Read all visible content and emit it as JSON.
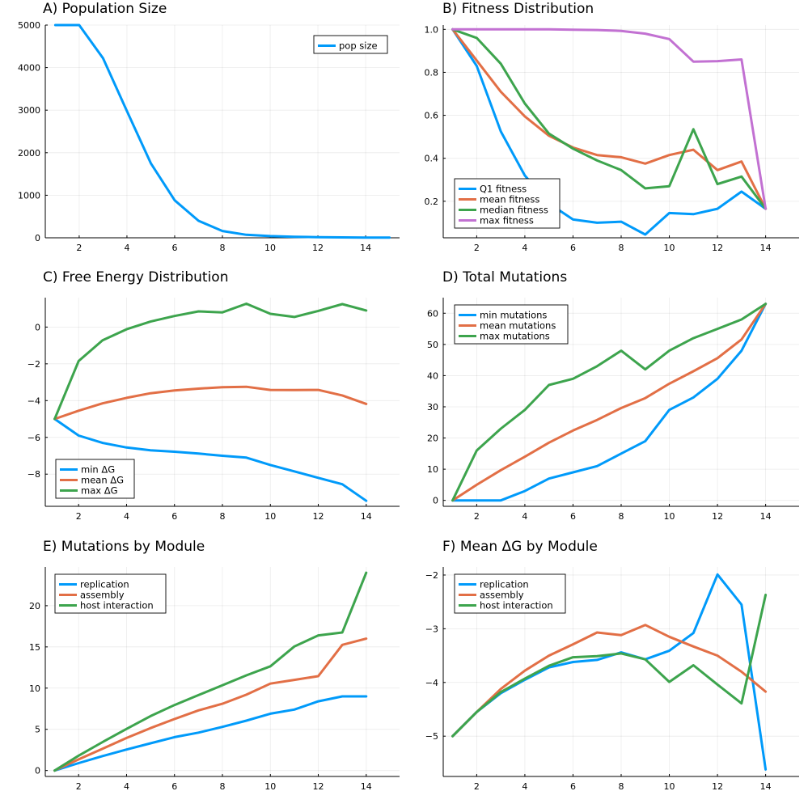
{
  "colors": {
    "blue": "#009AFA",
    "orange": "#E26F46",
    "green": "#3DA44D",
    "purple": "#C271D2"
  },
  "chart_data": [
    {
      "id": "A",
      "type": "line",
      "title": "A) Population Size",
      "xlim": [
        0.58,
        15.42
      ],
      "ylim": [
        0,
        5000
      ],
      "xticks": [
        2,
        4,
        6,
        8,
        10,
        12,
        14
      ],
      "yticks": [
        0,
        1000,
        2000,
        3000,
        4000,
        5000
      ],
      "legend_position": "top-right",
      "grid": true,
      "series": [
        {
          "name": "pop size",
          "color": "#009AFA",
          "x": [
            1,
            2,
            3,
            4,
            5,
            6,
            7,
            8,
            9,
            10,
            11,
            12,
            13,
            14,
            15
          ],
          "y": [
            5000,
            5000,
            4220,
            2980,
            1750,
            880,
            400,
            160,
            70,
            40,
            25,
            15,
            10,
            6,
            3
          ]
        }
      ]
    },
    {
      "id": "B",
      "type": "line",
      "title": "B) Fitness Distribution",
      "xlim": [
        0.61,
        15.39
      ],
      "ylim": [
        0.03,
        1.02
      ],
      "xticks": [
        2,
        4,
        6,
        8,
        10,
        12,
        14
      ],
      "yticks": [
        0.2,
        0.4,
        0.6,
        0.8,
        1.0
      ],
      "ytick_labels": [
        "0.2",
        "0.4",
        "0.6",
        "0.8",
        "1.0"
      ],
      "legend_position": "bottom-left",
      "grid": true,
      "series": [
        {
          "name": "Q1 fitness",
          "color": "#009AFA",
          "x": [
            1,
            2,
            3,
            4,
            5,
            6,
            7,
            8,
            9,
            10,
            11,
            12,
            13,
            14
          ],
          "y": [
            1.0,
            0.83,
            0.525,
            0.32,
            0.19,
            0.115,
            0.1,
            0.105,
            0.045,
            0.145,
            0.14,
            0.165,
            0.245,
            0.165
          ]
        },
        {
          "name": "mean fitness",
          "color": "#E26F46",
          "x": [
            1,
            2,
            3,
            4,
            5,
            6,
            7,
            8,
            9,
            10,
            11,
            12,
            13,
            14
          ],
          "y": [
            1.0,
            0.855,
            0.71,
            0.595,
            0.505,
            0.45,
            0.415,
            0.405,
            0.375,
            0.415,
            0.44,
            0.345,
            0.385,
            0.165
          ]
        },
        {
          "name": "median fitness",
          "color": "#3DA44D",
          "x": [
            1,
            2,
            3,
            4,
            5,
            6,
            7,
            8,
            9,
            10,
            11,
            12,
            13,
            14
          ],
          "y": [
            1.0,
            0.96,
            0.84,
            0.655,
            0.515,
            0.445,
            0.39,
            0.345,
            0.26,
            0.27,
            0.535,
            0.28,
            0.315,
            0.165
          ]
        },
        {
          "name": "max fitness",
          "color": "#C271D2",
          "x": [
            1,
            2,
            3,
            4,
            5,
            6,
            7,
            8,
            9,
            10,
            11,
            12,
            13,
            14
          ],
          "y": [
            1.0,
            1.0,
            1.0,
            1.0,
            1.0,
            0.998,
            0.997,
            0.993,
            0.98,
            0.955,
            0.85,
            0.852,
            0.86,
            0.165
          ]
        }
      ]
    },
    {
      "id": "C",
      "type": "line",
      "title": "C) Free Energy Distribution",
      "xlim": [
        0.61,
        15.39
      ],
      "ylim": [
        -9.75,
        1.6
      ],
      "xticks": [
        2,
        4,
        6,
        8,
        10,
        12,
        14
      ],
      "yticks": [
        -8,
        -6,
        -4,
        -2,
        0
      ],
      "ytick_labels": [
        "−8",
        "−6",
        "−4",
        "−2",
        "0"
      ],
      "legend_position": "bottom-left",
      "grid": true,
      "series": [
        {
          "name": "min ΔG",
          "color": "#009AFA",
          "x": [
            1,
            2,
            3,
            4,
            5,
            6,
            7,
            8,
            9,
            10,
            11,
            12,
            13,
            14
          ],
          "y": [
            -5.0,
            -5.9,
            -6.3,
            -6.55,
            -6.7,
            -6.78,
            -6.88,
            -7.0,
            -7.1,
            -7.5,
            -7.85,
            -8.2,
            -8.55,
            -9.45
          ]
        },
        {
          "name": "mean ΔG",
          "color": "#E26F46",
          "x": [
            1,
            2,
            3,
            4,
            5,
            6,
            7,
            8,
            9,
            10,
            11,
            12,
            13,
            14
          ],
          "y": [
            -5.0,
            -4.55,
            -4.15,
            -3.85,
            -3.6,
            -3.45,
            -3.35,
            -3.27,
            -3.25,
            -3.42,
            -3.43,
            -3.42,
            -3.72,
            -4.18
          ]
        },
        {
          "name": "max ΔG",
          "color": "#3DA44D",
          "x": [
            1,
            2,
            3,
            4,
            5,
            6,
            7,
            8,
            9,
            10,
            11,
            12,
            13,
            14
          ],
          "y": [
            -5.0,
            -1.85,
            -0.72,
            -0.12,
            0.3,
            0.6,
            0.85,
            0.8,
            1.27,
            0.72,
            0.55,
            0.88,
            1.25,
            0.9
          ]
        }
      ]
    },
    {
      "id": "D",
      "type": "line",
      "title": "D) Total Mutations",
      "xlim": [
        0.61,
        15.39
      ],
      "ylim": [
        -1.9,
        65.0
      ],
      "xticks": [
        2,
        4,
        6,
        8,
        10,
        12,
        14
      ],
      "yticks": [
        0,
        10,
        20,
        30,
        40,
        50,
        60
      ],
      "legend_position": "top-left",
      "grid": true,
      "series": [
        {
          "name": "min mutations",
          "color": "#009AFA",
          "x": [
            1,
            2,
            3,
            4,
            5,
            6,
            7,
            8,
            9,
            10,
            11,
            12,
            13,
            14
          ],
          "y": [
            0,
            0,
            0,
            3,
            7,
            9,
            11,
            15,
            19,
            29,
            33,
            39,
            48,
            63
          ]
        },
        {
          "name": "mean mutations",
          "color": "#E26F46",
          "x": [
            1,
            2,
            3,
            4,
            5,
            6,
            7,
            8,
            9,
            10,
            11,
            12,
            13,
            14
          ],
          "y": [
            0,
            5,
            9.7,
            14,
            18.5,
            22.4,
            25.8,
            29.6,
            32.8,
            37.4,
            41.4,
            45.6,
            51.6,
            63
          ]
        },
        {
          "name": "max mutations",
          "color": "#3DA44D",
          "x": [
            1,
            2,
            3,
            4,
            5,
            6,
            7,
            8,
            9,
            10,
            11,
            12,
            13,
            14
          ],
          "y": [
            0,
            16,
            23,
            29,
            37,
            39,
            43,
            48,
            42,
            48,
            52,
            55,
            58,
            63
          ]
        }
      ]
    },
    {
      "id": "E",
      "type": "line",
      "title": "E) Mutations by Module",
      "xlim": [
        0.61,
        15.39
      ],
      "ylim": [
        -0.72,
        24.7
      ],
      "xticks": [
        2,
        4,
        6,
        8,
        10,
        12,
        14
      ],
      "yticks": [
        0,
        5,
        10,
        15,
        20
      ],
      "legend_position": "top-left",
      "grid": true,
      "series": [
        {
          "name": "replication",
          "color": "#009AFA",
          "x": [
            1,
            2,
            3,
            4,
            5,
            6,
            7,
            8,
            9,
            10,
            11,
            12,
            13,
            14
          ],
          "y": [
            0,
            0.9,
            1.75,
            2.55,
            3.3,
            4.05,
            4.6,
            5.3,
            6.05,
            6.9,
            7.4,
            8.4,
            9.0,
            9.0
          ]
        },
        {
          "name": "assembly",
          "color": "#E26F46",
          "x": [
            1,
            2,
            3,
            4,
            5,
            6,
            7,
            8,
            9,
            10,
            11,
            12,
            13,
            14
          ],
          "y": [
            0,
            1.35,
            2.65,
            3.95,
            5.15,
            6.25,
            7.3,
            8.1,
            9.2,
            10.55,
            11.0,
            11.45,
            15.25,
            16.0
          ]
        },
        {
          "name": "host interaction",
          "color": "#3DA44D",
          "x": [
            1,
            2,
            3,
            4,
            5,
            6,
            7,
            8,
            9,
            10,
            11,
            12,
            13,
            14
          ],
          "y": [
            0,
            1.8,
            3.45,
            5.05,
            6.6,
            7.95,
            9.15,
            10.35,
            11.55,
            12.65,
            15.05,
            16.4,
            16.75,
            24.0
          ]
        }
      ]
    },
    {
      "id": "F",
      "type": "line",
      "title": "F) Mean ΔG by Module",
      "xlim": [
        0.61,
        15.39
      ],
      "ylim": [
        -5.75,
        -1.85
      ],
      "xticks": [
        2,
        4,
        6,
        8,
        10,
        12,
        14
      ],
      "yticks": [
        -5,
        -4,
        -3,
        -2
      ],
      "ytick_labels": [
        "−5",
        "−4",
        "−3",
        "−2"
      ],
      "legend_position": "top-left",
      "grid": true,
      "series": [
        {
          "name": "replication",
          "color": "#009AFA",
          "x": [
            1,
            2,
            3,
            4,
            5,
            6,
            7,
            8,
            9,
            10,
            11,
            12,
            13,
            14
          ],
          "y": [
            -5.0,
            -4.55,
            -4.2,
            -3.95,
            -3.72,
            -3.62,
            -3.58,
            -3.44,
            -3.57,
            -3.41,
            -3.08,
            -1.99,
            -2.55,
            -5.62
          ]
        },
        {
          "name": "assembly",
          "color": "#E26F46",
          "x": [
            1,
            2,
            3,
            4,
            5,
            6,
            7,
            8,
            9,
            10,
            11,
            12,
            13,
            14
          ],
          "y": [
            -5.0,
            -4.55,
            -4.12,
            -3.78,
            -3.5,
            -3.29,
            -3.07,
            -3.12,
            -2.93,
            -3.15,
            -3.33,
            -3.5,
            -3.8,
            -4.17
          ]
        },
        {
          "name": "host interaction",
          "color": "#3DA44D",
          "x": [
            1,
            2,
            3,
            4,
            5,
            6,
            7,
            8,
            9,
            10,
            11,
            12,
            13,
            14
          ],
          "y": [
            -5.0,
            -4.55,
            -4.18,
            -3.93,
            -3.69,
            -3.53,
            -3.51,
            -3.46,
            -3.57,
            -3.99,
            -3.68,
            -4.04,
            -4.39,
            -2.37
          ]
        }
      ]
    }
  ]
}
